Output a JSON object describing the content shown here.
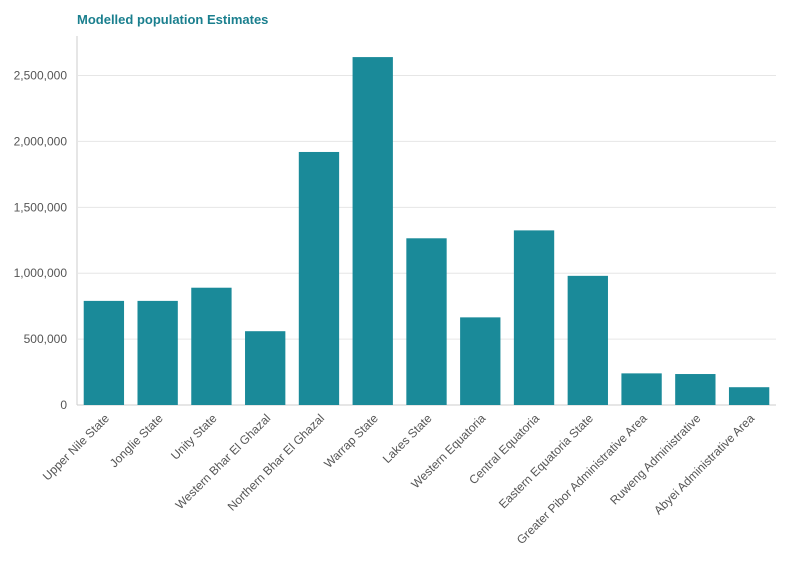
{
  "chart_data": {
    "type": "bar",
    "title": "Modelled population Estimates",
    "xlabel": "",
    "ylabel": "",
    "categories": [
      "Upper Nile State",
      "Jonglie State",
      "Unity State",
      "Western Bhar El Ghazal",
      "Northern Bhar El Ghazal",
      "Warrap State",
      "Lakes State",
      "Western Equatoria",
      "Central Equatoria",
      "Eastern Equatoria State",
      "Greater Pibor Administrative Area",
      "Ruweng Administrative",
      "Abyei Administrative Area"
    ],
    "values": [
      790000,
      790000,
      890000,
      560000,
      1920000,
      2640000,
      1265000,
      665000,
      1325000,
      980000,
      240000,
      235000,
      135000
    ],
    "ylim": [
      0,
      2800000
    ],
    "yticks": [
      0,
      500000,
      1000000,
      1500000,
      2000000,
      2500000
    ],
    "ytick_labels": [
      "0",
      "500,000",
      "1,000,000",
      "1,500,000",
      "2,000,000",
      "2,500,000"
    ],
    "grid": true,
    "legend": "none",
    "colors": {
      "bar": "#1a8a99",
      "title": "#1a7f8e"
    }
  }
}
